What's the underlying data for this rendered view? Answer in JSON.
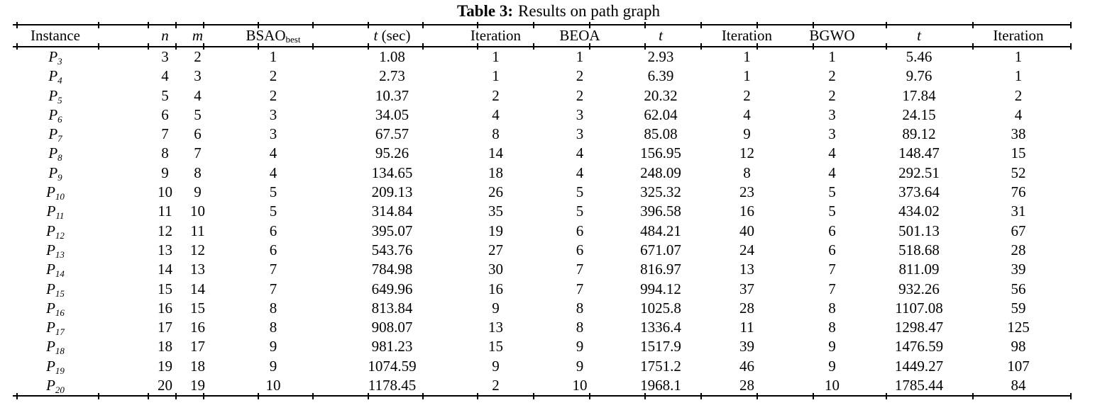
{
  "caption": {
    "label": "Table 3:",
    "text": "Results on path graph"
  },
  "table": {
    "columns": [
      {
        "id": "instance",
        "italic": "",
        "text": "Instance",
        "sub": ""
      },
      {
        "id": "n",
        "italic": "n",
        "text": "",
        "sub": ""
      },
      {
        "id": "m",
        "italic": "m",
        "text": "",
        "sub": ""
      },
      {
        "id": "bsao-best",
        "italic": "",
        "text": "BSAO",
        "sub": "best"
      },
      {
        "id": "t-sec",
        "italic": "t",
        "text": " (sec)",
        "sub": ""
      },
      {
        "id": "iteration-bsao",
        "italic": "",
        "text": "Iteration",
        "sub": ""
      },
      {
        "id": "beoa",
        "italic": "",
        "text": "BEOA",
        "sub": ""
      },
      {
        "id": "t-beoa",
        "italic": "t",
        "text": "",
        "sub": ""
      },
      {
        "id": "iteration-beoa",
        "italic": "",
        "text": "Iteration",
        "sub": ""
      },
      {
        "id": "bgwo",
        "italic": "",
        "text": "BGWO",
        "sub": ""
      },
      {
        "id": "t-bgwo",
        "italic": "t",
        "text": "",
        "sub": ""
      },
      {
        "id": "iteration-bgwo",
        "italic": "",
        "text": "Iteration",
        "sub": ""
      }
    ],
    "rows": [
      {
        "instance": {
          "base": "P",
          "sub": "3"
        },
        "cells": [
          "3",
          "2",
          "1",
          "1.08",
          "1",
          "1",
          "2.93",
          "1",
          "1",
          "5.46",
          "1"
        ]
      },
      {
        "instance": {
          "base": "P",
          "sub": "4"
        },
        "cells": [
          "4",
          "3",
          "2",
          "2.73",
          "1",
          "2",
          "6.39",
          "1",
          "2",
          "9.76",
          "1"
        ]
      },
      {
        "instance": {
          "base": "P",
          "sub": "5"
        },
        "cells": [
          "5",
          "4",
          "2",
          "10.37",
          "2",
          "2",
          "20.32",
          "2",
          "2",
          "17.84",
          "2"
        ]
      },
      {
        "instance": {
          "base": "P",
          "sub": "6"
        },
        "cells": [
          "6",
          "5",
          "3",
          "34.05",
          "4",
          "3",
          "62.04",
          "4",
          "3",
          "24.15",
          "4"
        ]
      },
      {
        "instance": {
          "base": "P",
          "sub": "7"
        },
        "cells": [
          "7",
          "6",
          "3",
          "67.57",
          "8",
          "3",
          "85.08",
          "9",
          "3",
          "89.12",
          "38"
        ]
      },
      {
        "instance": {
          "base": "P",
          "sub": "8"
        },
        "cells": [
          "8",
          "7",
          "4",
          "95.26",
          "14",
          "4",
          "156.95",
          "12",
          "4",
          "148.47",
          "15"
        ]
      },
      {
        "instance": {
          "base": "P",
          "sub": "9"
        },
        "cells": [
          "9",
          "8",
          "4",
          "134.65",
          "18",
          "4",
          "248.09",
          "8",
          "4",
          "292.51",
          "52"
        ]
      },
      {
        "instance": {
          "base": "P",
          "sub": "10"
        },
        "cells": [
          "10",
          "9",
          "5",
          "209.13",
          "26",
          "5",
          "325.32",
          "23",
          "5",
          "373.64",
          "76"
        ]
      },
      {
        "instance": {
          "base": "P",
          "sub": "11"
        },
        "cells": [
          "11",
          "10",
          "5",
          "314.84",
          "35",
          "5",
          "396.58",
          "16",
          "5",
          "434.02",
          "31"
        ]
      },
      {
        "instance": {
          "base": "P",
          "sub": "12"
        },
        "cells": [
          "12",
          "11",
          "6",
          "395.07",
          "19",
          "6",
          "484.21",
          "40",
          "6",
          "501.13",
          "67"
        ]
      },
      {
        "instance": {
          "base": "P",
          "sub": "13"
        },
        "cells": [
          "13",
          "12",
          "6",
          "543.76",
          "27",
          "6",
          "671.07",
          "24",
          "6",
          "518.68",
          "28"
        ]
      },
      {
        "instance": {
          "base": "P",
          "sub": "14"
        },
        "cells": [
          "14",
          "13",
          "7",
          "784.98",
          "30",
          "7",
          "816.97",
          "13",
          "7",
          "811.09",
          "39"
        ]
      },
      {
        "instance": {
          "base": "P",
          "sub": "15"
        },
        "cells": [
          "15",
          "14",
          "7",
          "649.96",
          "16",
          "7",
          "994.12",
          "37",
          "7",
          "932.26",
          "56"
        ]
      },
      {
        "instance": {
          "base": "P",
          "sub": "16"
        },
        "cells": [
          "16",
          "15",
          "8",
          "813.84",
          "9",
          "8",
          "1025.8",
          "28",
          "8",
          "1107.08",
          "59"
        ]
      },
      {
        "instance": {
          "base": "P",
          "sub": "17"
        },
        "cells": [
          "17",
          "16",
          "8",
          "908.07",
          "13",
          "8",
          "1336.4",
          "11",
          "8",
          "1298.47",
          "125"
        ]
      },
      {
        "instance": {
          "base": "P",
          "sub": "18"
        },
        "cells": [
          "18",
          "17",
          "9",
          "981.23",
          "15",
          "9",
          "1517.9",
          "39",
          "9",
          "1476.59",
          "98"
        ]
      },
      {
        "instance": {
          "base": "P",
          "sub": "19"
        },
        "cells": [
          "19",
          "18",
          "9",
          "1074.59",
          "9",
          "9",
          "1751.2",
          "46",
          "9",
          "1449.27",
          "107"
        ]
      },
      {
        "instance": {
          "base": "P",
          "sub": "20"
        },
        "cells": [
          "20",
          "19",
          "10",
          "1178.45",
          "2",
          "10",
          "1968.1",
          "28",
          "10",
          "1785.44",
          "84"
        ]
      }
    ]
  },
  "colors": {
    "text": "#000000",
    "rule": "#000000",
    "background": "#ffffff"
  }
}
